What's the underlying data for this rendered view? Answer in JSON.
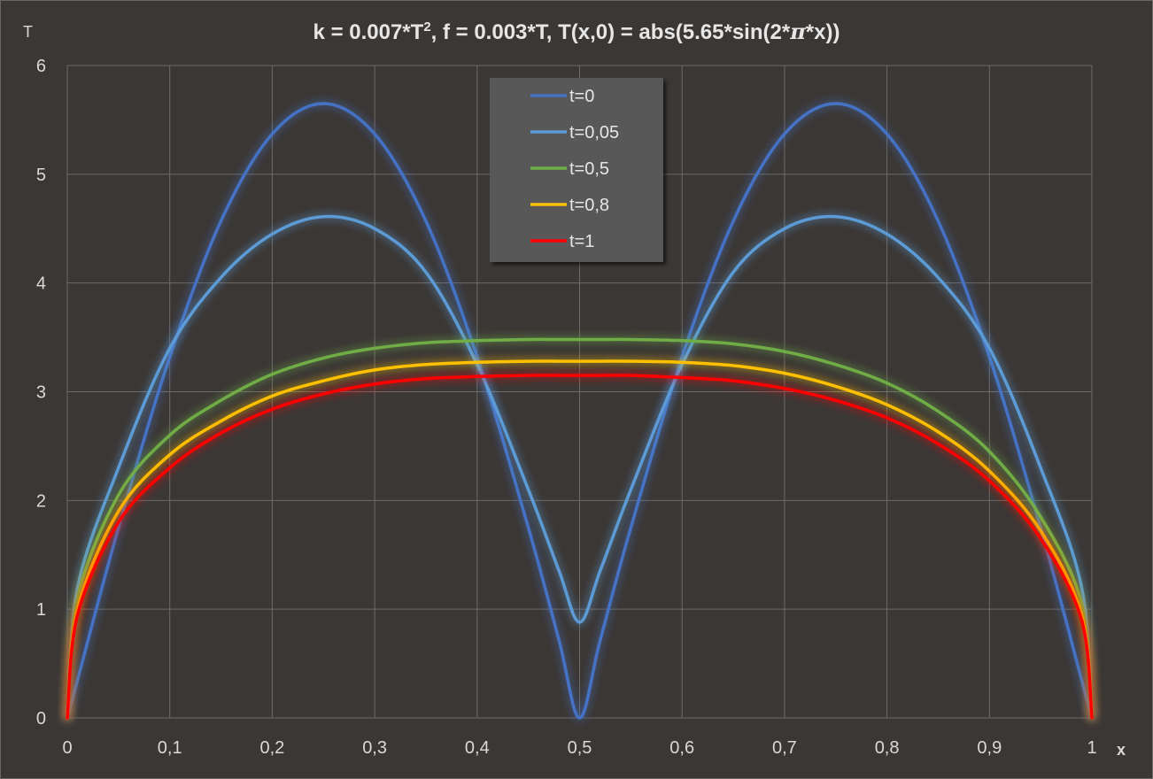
{
  "chart_data": {
    "type": "line",
    "title": "k = 0.007*T², f = 0.003*T,  T(x,0) = abs(5.65*sin(2*π*x))",
    "title_parts": [
      "k = 0.007*T",
      "2",
      ", f = 0.003*T,  T(x,0) = abs(5.65*sin(2*",
      "π",
      "*x))"
    ],
    "xlabel": "x",
    "ylabel": "T",
    "xlim": [
      0,
      1
    ],
    "ylim": [
      0,
      6
    ],
    "grid": true,
    "legend": "top-center",
    "x_ticks": [
      "0",
      "0,1",
      "0,2",
      "0,3",
      "0,4",
      "0,5",
      "0,6",
      "0,7",
      "0,8",
      "0,9",
      "1"
    ],
    "y_ticks": [
      "0",
      "1",
      "2",
      "3",
      "4",
      "5",
      "6"
    ],
    "x": [
      0,
      0.01,
      0.05,
      0.1,
      0.15,
      0.2,
      0.25,
      0.3,
      0.35,
      0.4,
      0.45,
      0.48,
      0.5,
      0.52,
      0.55,
      0.6,
      0.65,
      0.7,
      0.75,
      0.8,
      0.85,
      0.9,
      0.95,
      0.99,
      1
    ],
    "series": [
      {
        "name": "t=0",
        "color": "#4472c4",
        "values": [
          0,
          0.35,
          1.75,
          3.32,
          4.57,
          5.37,
          5.65,
          5.37,
          4.57,
          3.32,
          1.75,
          0.71,
          0,
          0.71,
          1.75,
          3.32,
          4.57,
          5.37,
          5.65,
          5.37,
          4.57,
          3.32,
          1.75,
          0.35,
          0
        ]
      },
      {
        "name": "t=0,05",
        "color": "#5b9bd5",
        "values": [
          0,
          1.2,
          2.3,
          3.4,
          4.05,
          4.45,
          4.61,
          4.5,
          4.1,
          3.25,
          2.1,
          1.35,
          0.88,
          1.35,
          2.1,
          3.25,
          4.1,
          4.5,
          4.61,
          4.45,
          4.05,
          3.4,
          2.3,
          1.2,
          0
        ]
      },
      {
        "name": "t=0,5",
        "color": "#70ad47",
        "values": [
          0,
          1.1,
          2.05,
          2.6,
          2.92,
          3.16,
          3.31,
          3.4,
          3.45,
          3.47,
          3.48,
          3.48,
          3.48,
          3.48,
          3.48,
          3.47,
          3.44,
          3.37,
          3.25,
          3.08,
          2.82,
          2.45,
          1.85,
          1.05,
          0
        ]
      },
      {
        "name": "t=0,8",
        "color": "#ffc000",
        "values": [
          0,
          1.0,
          1.9,
          2.42,
          2.73,
          2.96,
          3.1,
          3.2,
          3.25,
          3.27,
          3.28,
          3.28,
          3.28,
          3.28,
          3.28,
          3.27,
          3.24,
          3.17,
          3.05,
          2.88,
          2.63,
          2.27,
          1.72,
          0.95,
          0
        ]
      },
      {
        "name": "t=1",
        "color": "#ff0000",
        "values": [
          0,
          0.95,
          1.8,
          2.3,
          2.62,
          2.84,
          2.98,
          3.07,
          3.12,
          3.14,
          3.15,
          3.15,
          3.15,
          3.15,
          3.15,
          3.13,
          3.1,
          3.03,
          2.92,
          2.76,
          2.52,
          2.18,
          1.65,
          0.9,
          0
        ]
      }
    ]
  }
}
